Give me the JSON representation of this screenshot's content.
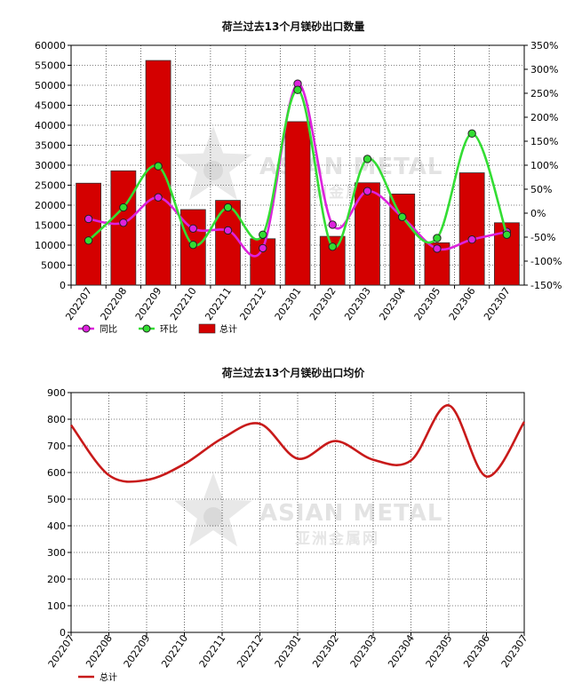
{
  "chart_data": [
    {
      "type": "bar",
      "title": "荷兰过去13个月镁砂出口数量",
      "categories": [
        "202207",
        "202208",
        "202209",
        "202210",
        "202211",
        "202212",
        "202301",
        "202302",
        "202303",
        "202304",
        "202305",
        "202306",
        "202307"
      ],
      "series": [
        {
          "name": "总计",
          "type": "bar",
          "axis": "left",
          "color": "#d40000",
          "values": [
            25500,
            28600,
            56200,
            18900,
            21200,
            11600,
            40900,
            12200,
            25600,
            22800,
            10600,
            28100,
            15600
          ]
        },
        {
          "name": "同比",
          "type": "line",
          "axis": "right",
          "color": "#dd22dd",
          "values": [
            -12,
            -20,
            33,
            -32,
            -36,
            -73,
            270,
            -24,
            46,
            -8,
            -74,
            -55,
            -39
          ]
        },
        {
          "name": "环比",
          "type": "line",
          "axis": "right",
          "color": "#33dd33",
          "values": [
            -57,
            12,
            98,
            -66,
            12,
            -45,
            257,
            -70,
            113,
            -8,
            -52,
            166,
            -45
          ]
        }
      ],
      "yleft": {
        "min": 0,
        "max": 60000,
        "step": 5000
      },
      "yright": {
        "min": -150,
        "max": 350,
        "step": 50,
        "unit": "%"
      },
      "grid": true,
      "legend": "bottom-left",
      "watermark": {
        "en": "ASIAN METAL",
        "cn": "亚洲金属网"
      }
    },
    {
      "type": "line",
      "title": "荷兰过去13个月镁砂出口均价",
      "categories": [
        "202207",
        "202208",
        "202209",
        "202210",
        "202211",
        "202212",
        "202301",
        "202302",
        "202303",
        "202304",
        "202305",
        "202306",
        "202307"
      ],
      "series": [
        {
          "name": "总计",
          "color": "#c81a1a",
          "values": [
            778,
            590,
            572,
            632,
            728,
            783,
            652,
            718,
            648,
            645,
            852,
            585,
            790
          ]
        }
      ],
      "ylim": [
        0,
        900
      ],
      "ystep": 100,
      "grid": true,
      "legend": "bottom-left",
      "watermark": {
        "en": "ASIAN METAL",
        "cn": "亚洲金属网"
      }
    }
  ]
}
